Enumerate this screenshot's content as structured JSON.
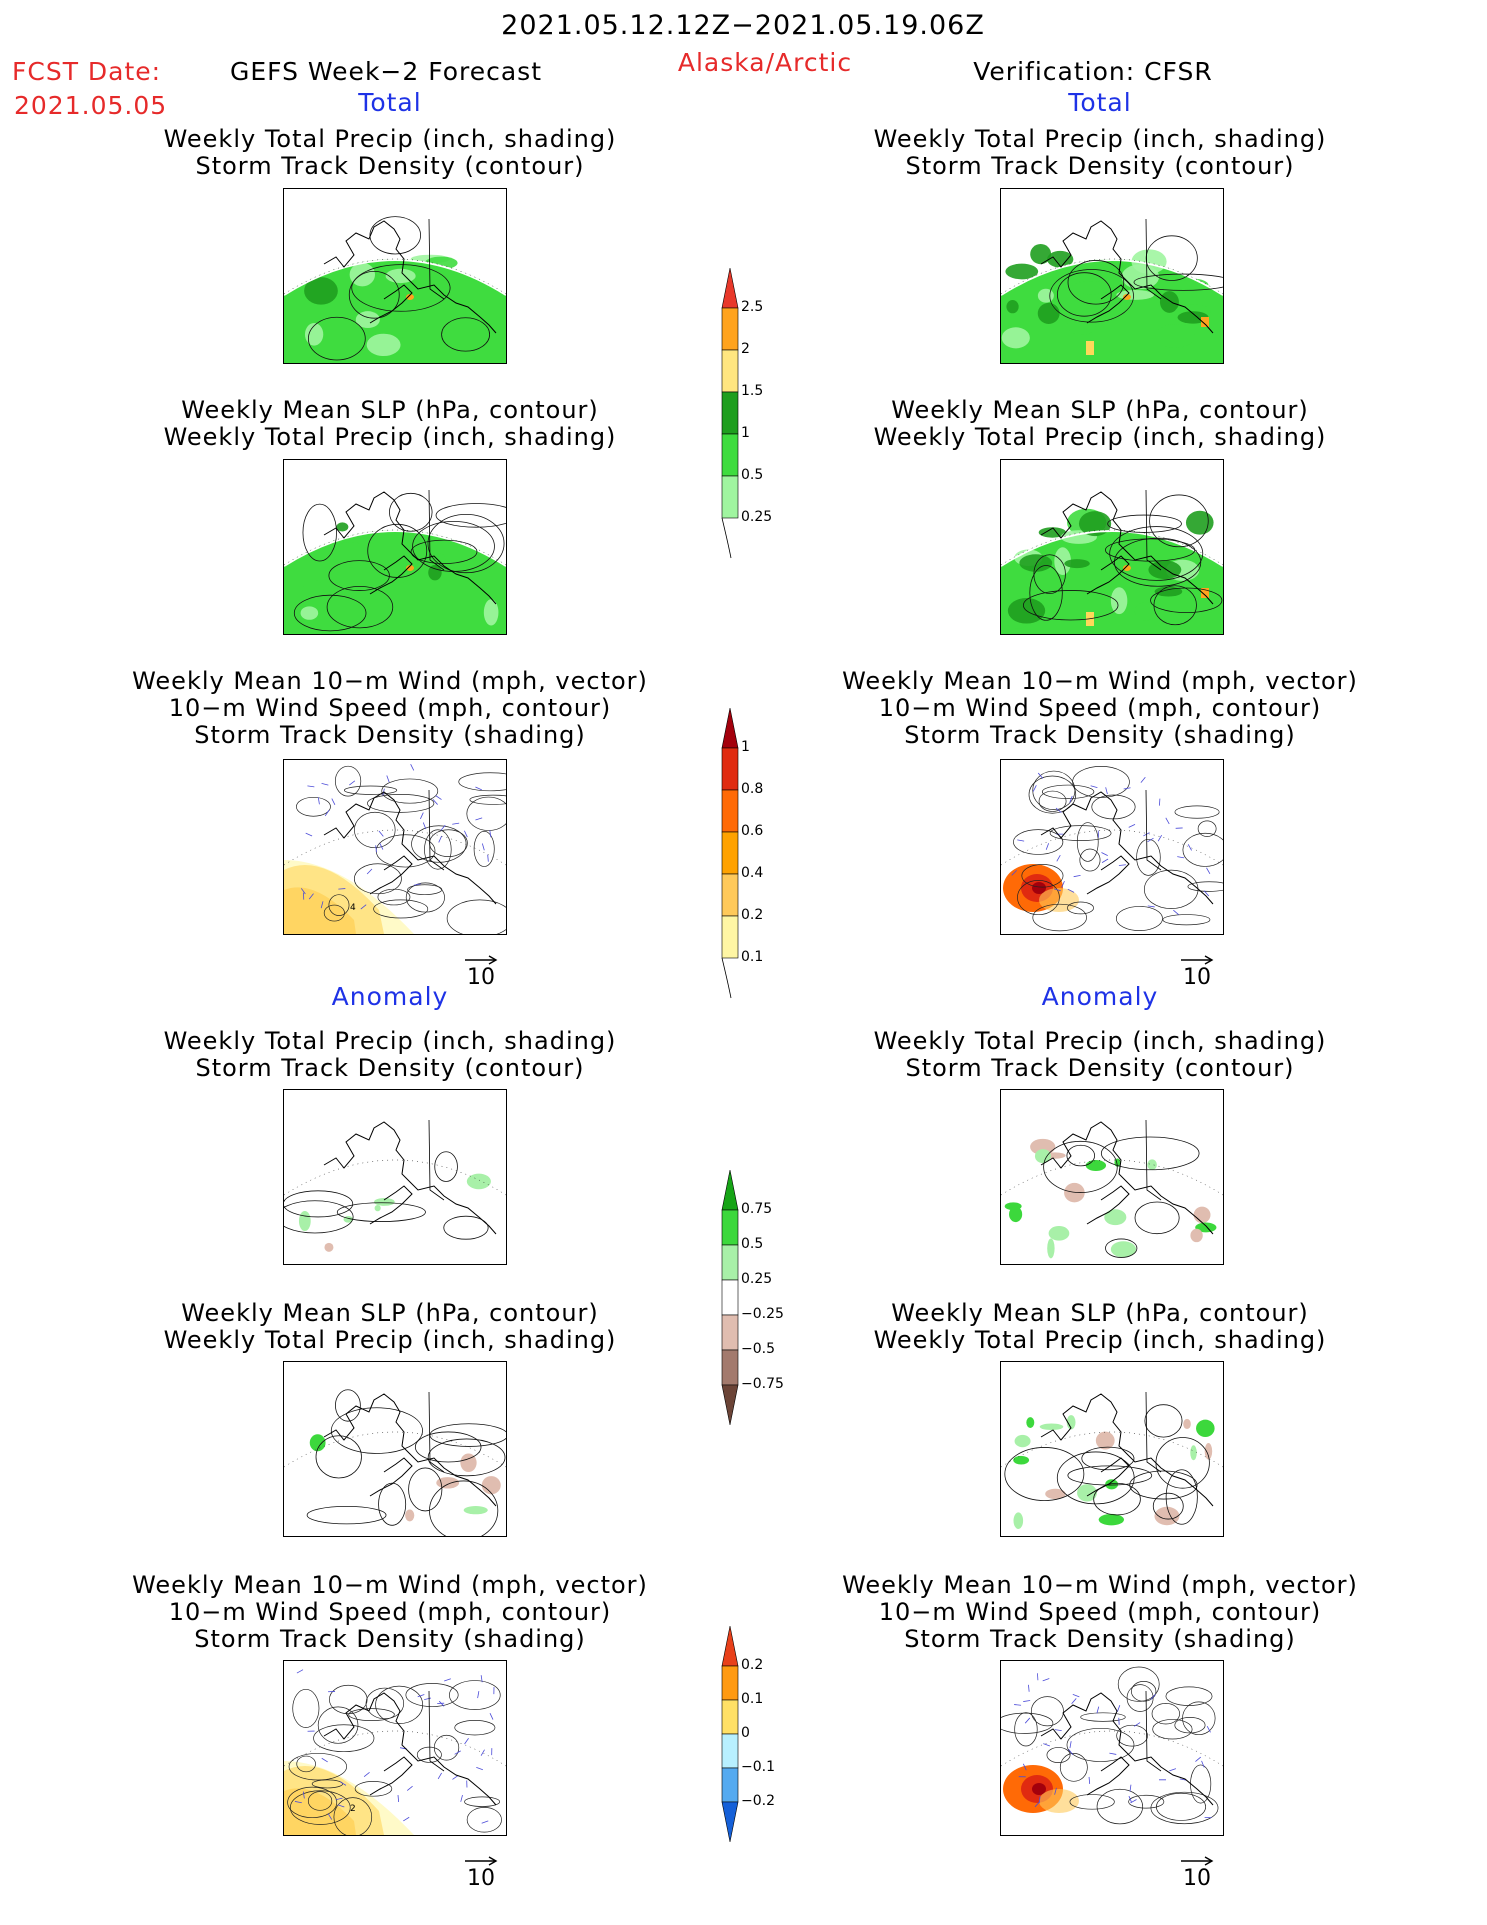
{
  "header": {
    "date_range": "2021.05.12.12Z−2021.05.19.06Z",
    "fcst_label": "FCST Date:",
    "fcst_date": "2021.05.05",
    "model": "GEFS Week−2 Forecast",
    "region": "Alaska/Arctic",
    "verification": "Verification: CFSR"
  },
  "sections": {
    "total": "Total",
    "anomaly": "Anomaly"
  },
  "panel_titles": {
    "precip_track": [
      "Weekly Total Precip (inch, shading)",
      "Storm Track Density (contour)"
    ],
    "slp_precip": [
      "Weekly Mean SLP (hPa, contour)",
      "Weekly Total Precip (inch, shading)"
    ],
    "wind": [
      "Weekly Mean 10−m Wind (mph, vector)",
      "10−m Wind Speed (mph, contour)",
      "Storm Track Density (shading)"
    ]
  },
  "vector_label": "10",
  "colorbars": [
    {
      "id": "precip-total",
      "labels": [
        "2.5",
        "2",
        "1.5",
        "1",
        "0.5",
        "0.25"
      ],
      "colors": [
        "#e8382a",
        "#ffa31e",
        "#ffe680",
        "#1f9e1f",
        "#3fdc3f",
        "#a0f5a0"
      ]
    },
    {
      "id": "track-total",
      "labels": [
        "1",
        "0.8",
        "0.6",
        "0.4",
        "0.2",
        "0.1"
      ],
      "colors": [
        "#a3000c",
        "#e02b10",
        "#ff6a06",
        "#ffa200",
        "#ffc95a",
        "#fff6a4"
      ]
    },
    {
      "id": "precip-anom",
      "labels": [
        "0.75",
        "0.5",
        "0.25",
        "−0.25",
        "−0.5",
        "−0.75"
      ],
      "colors": [
        "#16a416",
        "#3cd83c",
        "#a8f0a8",
        "#ffffff",
        "#e0bdb0",
        "#a37a6d",
        "#6b4437"
      ]
    },
    {
      "id": "track-anom",
      "labels": [
        "0.2",
        "0.1",
        "0",
        "−0.1",
        "−0.2"
      ],
      "colors": [
        "#e8401a",
        "#ff9a12",
        "#ffe066",
        "#b8f0ff",
        "#55aaf0",
        "#1560d8"
      ]
    }
  ],
  "contour_labels": {
    "wind_left_total": "4",
    "wind_left_anom": "2"
  }
}
